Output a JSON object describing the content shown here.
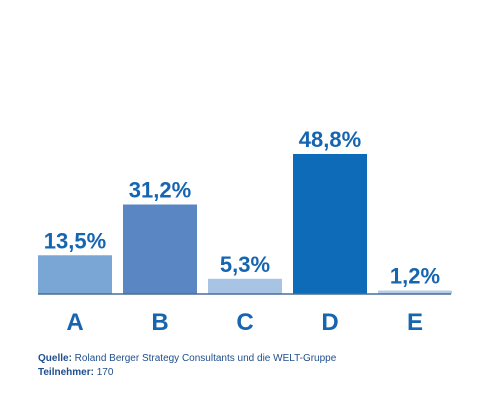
{
  "chart_data": {
    "type": "bar",
    "categories": [
      "A",
      "B",
      "C",
      "D",
      "E"
    ],
    "values": [
      13.5,
      31.2,
      5.3,
      48.8,
      1.2
    ],
    "value_labels": [
      "13,5%",
      "31,2%",
      "5,3%",
      "48,8%",
      "1,2%"
    ],
    "bar_colors": [
      "#7aa6d6",
      "#5a86c3",
      "#a7c4e5",
      "#0d6bb7",
      "#b6cde9"
    ],
    "label_color": "#1565b0",
    "axis_color": "#4a6d96",
    "ylim": [
      0,
      48.8
    ],
    "grid": false,
    "xlabel": "",
    "ylabel": ""
  },
  "footer": {
    "source_key": "Quelle:",
    "source_value": " Roland Berger Strategy Consultants und die WELT-Gruppe",
    "participants_key": "Teilnehmer:",
    "participants_value": " 170"
  }
}
